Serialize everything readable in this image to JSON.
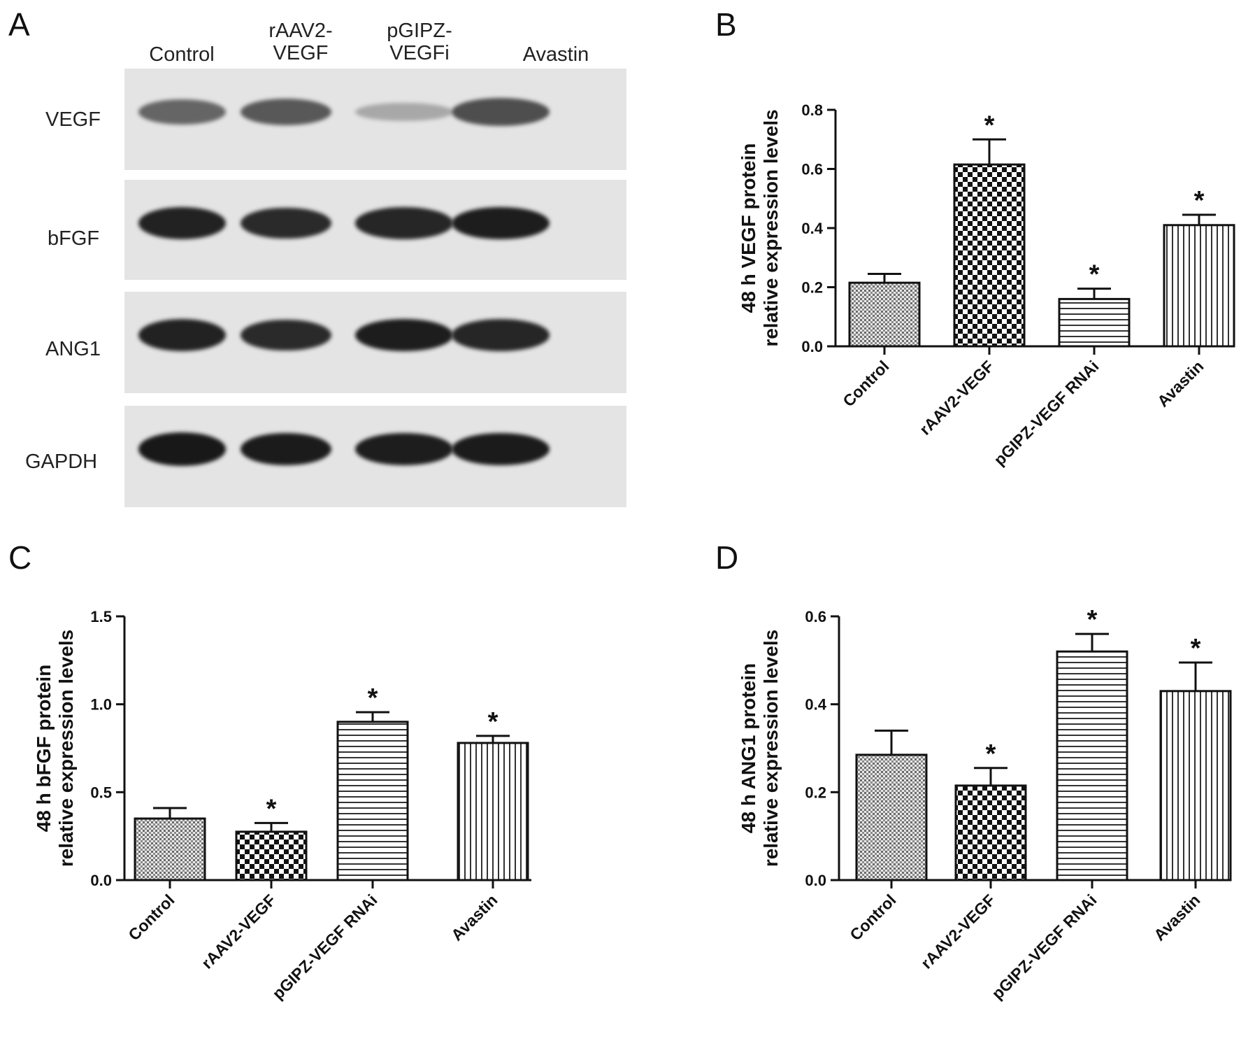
{
  "panels": {
    "a": "A",
    "b": "B",
    "c": "C",
    "d": "D"
  },
  "blot": {
    "lanes": [
      {
        "line1": "Control",
        "line2": ""
      },
      {
        "line1": "rAAV2-",
        "line2": "VEGF"
      },
      {
        "line1": "pGIPZ-",
        "line2": "VEGFi"
      },
      {
        "line1": "Avastin",
        "line2": ""
      }
    ],
    "rows": [
      "VEGF",
      "bFGF",
      "ANG1",
      "GAPDH"
    ],
    "band_intensity": [
      [
        0.55,
        0.62,
        0.18,
        0.68
      ],
      [
        0.92,
        0.88,
        0.9,
        0.95
      ],
      [
        0.92,
        0.88,
        0.95,
        0.9
      ],
      [
        0.98,
        0.96,
        0.95,
        0.96
      ]
    ]
  },
  "chart_data": [
    {
      "type": "bar",
      "panel": "B",
      "categories": [
        "Control",
        "rAAV2-VEGF",
        "pGIPZ-VEGF RNAi",
        "Avastin"
      ],
      "values": [
        0.215,
        0.615,
        0.16,
        0.41
      ],
      "errors": [
        0.03,
        0.085,
        0.035,
        0.035
      ],
      "significant": [
        false,
        true,
        true,
        true
      ],
      "significance_marker": "*",
      "ylabel_line1": "48 h VEGF protein",
      "ylabel_line2": "relative expression levels",
      "ylim": [
        0,
        0.8
      ],
      "yticks": [
        "0.0",
        "0.2",
        "0.4",
        "0.6",
        "0.8"
      ],
      "patterns": [
        "fine-check",
        "checker",
        "horizontal",
        "vertical"
      ]
    },
    {
      "type": "bar",
      "panel": "C",
      "categories": [
        "Control",
        "rAAV2-VEGF",
        "pGIPZ-VEGF RNAi",
        "Avastin"
      ],
      "values": [
        0.35,
        0.275,
        0.9,
        0.78
      ],
      "errors": [
        0.06,
        0.05,
        0.055,
        0.04
      ],
      "significant": [
        false,
        true,
        true,
        true
      ],
      "significance_marker": "*",
      "ylabel_line1": "48 h bFGF protein",
      "ylabel_line2": "relative expression levels",
      "ylim": [
        0,
        1.5
      ],
      "yticks": [
        "0.0",
        "0.5",
        "1.0",
        "1.5"
      ],
      "patterns": [
        "fine-check",
        "checker",
        "horizontal",
        "vertical"
      ]
    },
    {
      "type": "bar",
      "panel": "D",
      "categories": [
        "Control",
        "rAAV2-VEGF",
        "pGIPZ-VEGF RNAi",
        "Avastin"
      ],
      "values": [
        0.285,
        0.215,
        0.52,
        0.43
      ],
      "errors": [
        0.055,
        0.04,
        0.04,
        0.065
      ],
      "significant": [
        false,
        true,
        true,
        true
      ],
      "significance_marker": "*",
      "ylabel_line1": "48 h ANG1 protein",
      "ylabel_line2": "relative expression levels",
      "ylim": [
        0,
        0.6
      ],
      "yticks": [
        "0.0",
        "0.2",
        "0.4",
        "0.6"
      ],
      "patterns": [
        "fine-check",
        "checker",
        "horizontal",
        "vertical"
      ]
    }
  ]
}
